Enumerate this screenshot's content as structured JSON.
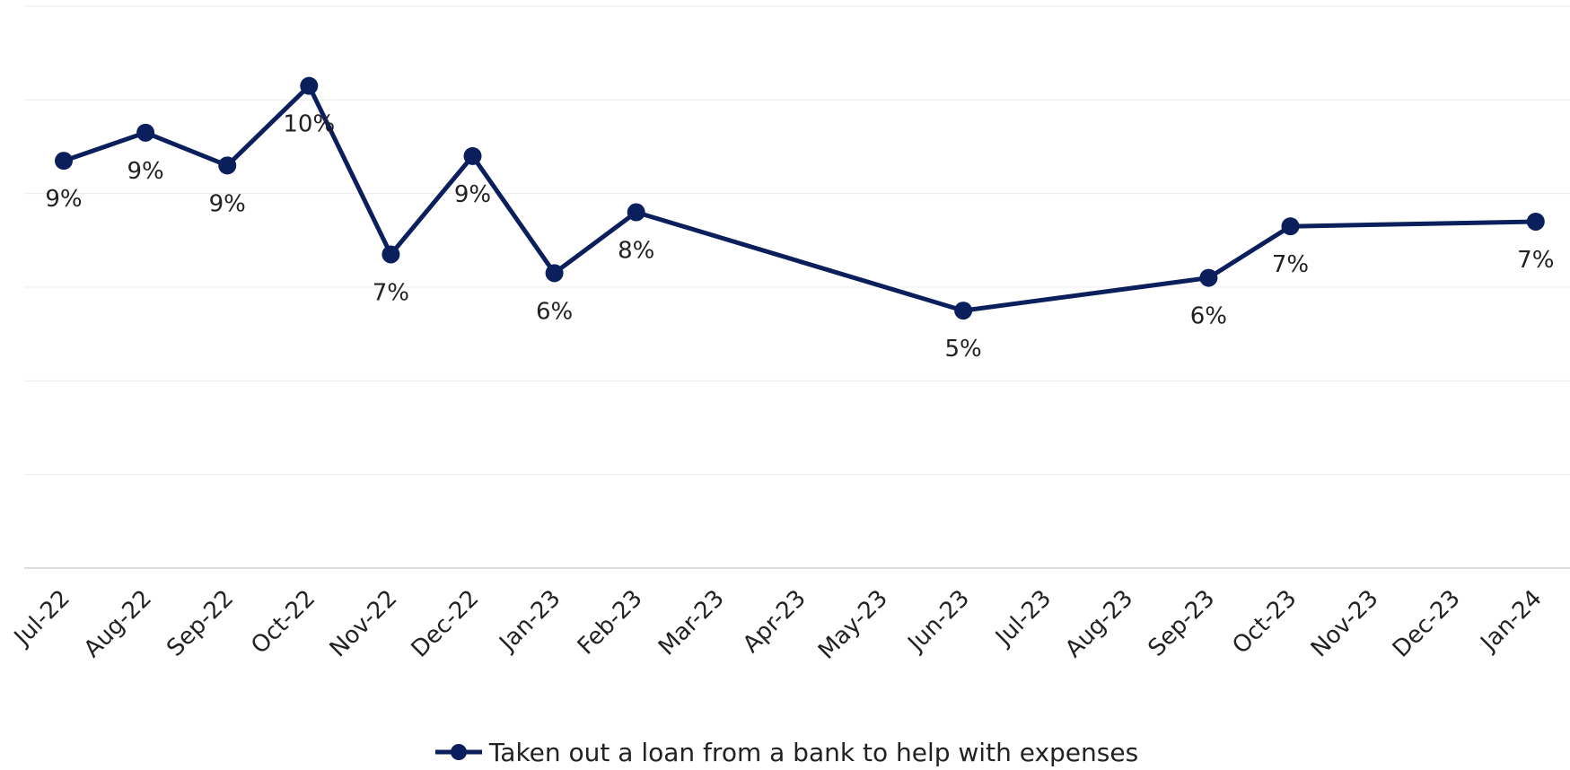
{
  "chart_data": {
    "type": "line",
    "categories": [
      "Jul-22",
      "Aug-22",
      "Sep-22",
      "Oct-22",
      "Nov-22",
      "Dec-22",
      "Jan-23",
      "Feb-23",
      "Mar-23",
      "Apr-23",
      "May-23",
      "Jun-23",
      "Jul-23",
      "Aug-23",
      "Sep-23",
      "Oct-23",
      "Nov-23",
      "Dec-23",
      "Jan-24"
    ],
    "series": [
      {
        "name": "Taken out a loan from a bank to help with expenses",
        "color": "#0b1f5c",
        "values": [
          0.087,
          0.093,
          0.086,
          0.103,
          0.067,
          0.088,
          0.063,
          0.076,
          null,
          null,
          null,
          0.055,
          null,
          null,
          0.062,
          0.073,
          null,
          null,
          0.074
        ],
        "data_labels": [
          "9%",
          "9%",
          "9%",
          "10%",
          "7%",
          "9%",
          "6%",
          "8%",
          "",
          "",
          "",
          "5%",
          "",
          "",
          "6%",
          "7%",
          "",
          "",
          "7%"
        ]
      }
    ],
    "ylim": [
      0,
      0.12
    ],
    "grid": true,
    "legend_position": "bottom"
  }
}
